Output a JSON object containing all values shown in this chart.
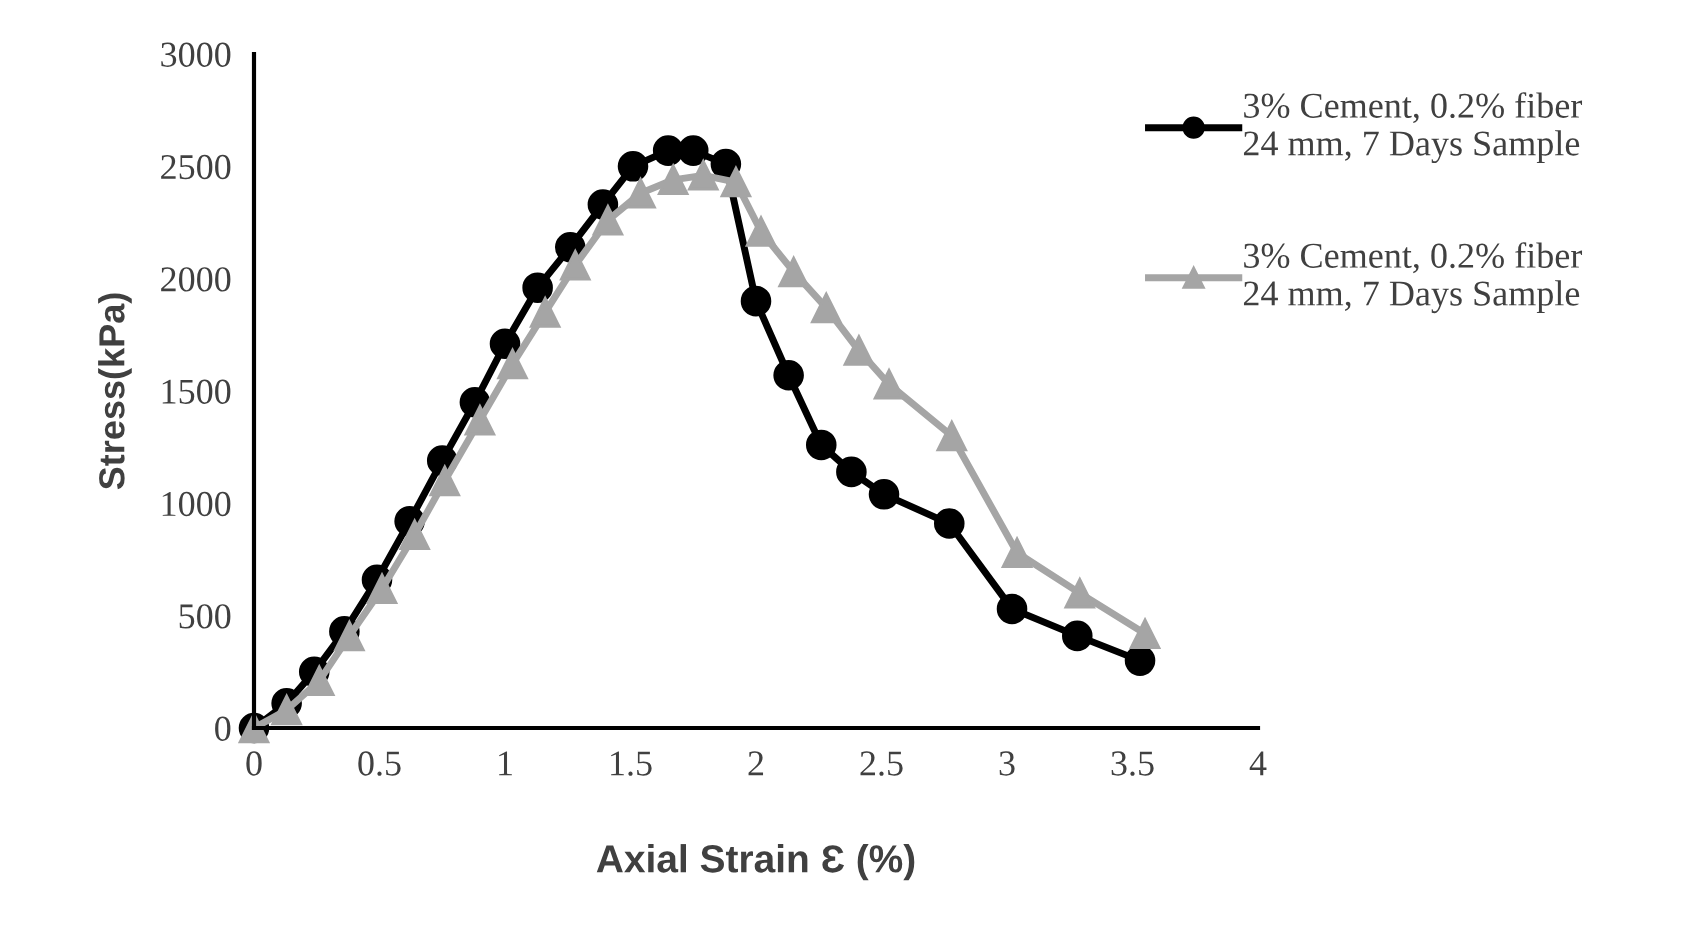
{
  "chart_data": {
    "type": "line",
    "xlabel": "Axial Strain Ɛ (%)",
    "ylabel": "Stress(kPa)",
    "xlim": [
      0,
      4
    ],
    "xticks": [
      0,
      0.5,
      1,
      1.5,
      2,
      2.5,
      3,
      3.5,
      4
    ],
    "ylim": [
      0,
      3000
    ],
    "yticks": [
      0,
      500,
      1000,
      1500,
      2000,
      2500,
      3000
    ],
    "grid": false,
    "legend": "right",
    "line_style": "solid",
    "series": [
      {
        "name": "3% Cement, 0.2% fiber\n24 mm, 7 Days Sample",
        "color": "#000000",
        "marker": "circle",
        "x": [
          0,
          0.13,
          0.24,
          0.36,
          0.49,
          0.62,
          0.75,
          0.88,
          1.0,
          1.13,
          1.26,
          1.39,
          1.51,
          1.65,
          1.75,
          1.88,
          2.0,
          2.13,
          2.26,
          2.38,
          2.51,
          2.77,
          3.02,
          3.28,
          3.53
        ],
        "values": [
          0,
          110,
          250,
          430,
          660,
          920,
          1190,
          1450,
          1710,
          1960,
          2140,
          2330,
          2500,
          2570,
          2570,
          2510,
          1900,
          1570,
          1260,
          1140,
          1040,
          910,
          530,
          410,
          300
        ]
      },
      {
        "name": "3% Cement, 0.2% fiber\n24 mm, 7 Days Sample",
        "color": "#a5a5a5",
        "marker": "triangle",
        "x": [
          0,
          0.13,
          0.26,
          0.38,
          0.51,
          0.64,
          0.76,
          0.9,
          1.03,
          1.16,
          1.28,
          1.41,
          1.54,
          1.67,
          1.79,
          1.92,
          2.02,
          2.15,
          2.28,
          2.41,
          2.53,
          2.78,
          3.04,
          3.29,
          3.55
        ],
        "values": [
          0,
          80,
          210,
          410,
          620,
          860,
          1100,
          1370,
          1620,
          1850,
          2060,
          2260,
          2380,
          2440,
          2460,
          2430,
          2210,
          2030,
          1870,
          1680,
          1530,
          1300,
          780,
          600,
          420
        ]
      }
    ]
  }
}
